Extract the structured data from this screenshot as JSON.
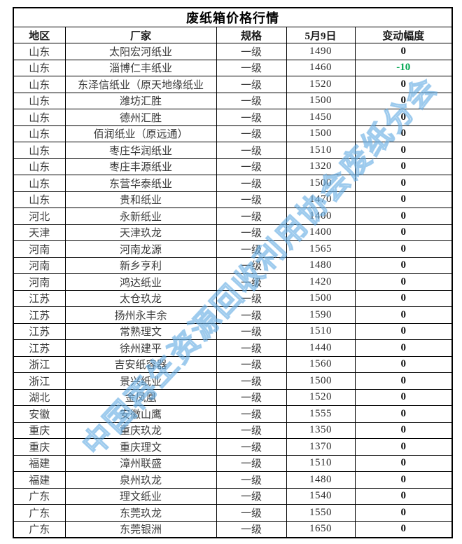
{
  "accent_colors": {
    "negative_change": "#00a651",
    "watermark_blue": "#87c4eb",
    "border": "#000000"
  },
  "watermark": {
    "text": "中国再生资源回收利用协会废纸分会"
  },
  "chart_data": {
    "type": "table",
    "title": "废纸箱价格行情",
    "columns": [
      "地区",
      "厂家",
      "规格",
      "5月9日",
      "变动幅度"
    ],
    "rows": [
      {
        "region": "山东",
        "factory": "太阳宏河纸业",
        "grade": "一级",
        "price": "1490",
        "change": "0"
      },
      {
        "region": "山东",
        "factory": "淄博仁丰纸业",
        "grade": "一级",
        "price": "1460",
        "change": "-10"
      },
      {
        "region": "山东",
        "factory": "东泽信纸业（原天地缘纸业",
        "grade": "一级",
        "price": "1520",
        "change": "0"
      },
      {
        "region": "山东",
        "factory": "潍坊汇胜",
        "grade": "一级",
        "price": "1500",
        "change": "0"
      },
      {
        "region": "山东",
        "factory": "德州汇胜",
        "grade": "一级",
        "price": "1450",
        "change": "0"
      },
      {
        "region": "山东",
        "factory": "佰润纸业（原远通）",
        "grade": "一级",
        "price": "1500",
        "change": "0"
      },
      {
        "region": "山东",
        "factory": "枣庄华润纸业",
        "grade": "一级",
        "price": "1510",
        "change": "0"
      },
      {
        "region": "山东",
        "factory": "枣庄丰源纸业",
        "grade": "一级",
        "price": "1320",
        "change": "0"
      },
      {
        "region": "山东",
        "factory": "东营华泰纸业",
        "grade": "一级",
        "price": "1500",
        "change": "0"
      },
      {
        "region": "山东",
        "factory": "贵和纸业",
        "grade": "一级",
        "price": "1470",
        "change": "0"
      },
      {
        "region": "河北",
        "factory": "永新纸业",
        "grade": "一级",
        "price": "1400",
        "change": "0"
      },
      {
        "region": "天津",
        "factory": "天津玖龙",
        "grade": "一级",
        "price": "1400",
        "change": "0"
      },
      {
        "region": "河南",
        "factory": "河南龙源",
        "grade": "一级",
        "price": "1565",
        "change": "0"
      },
      {
        "region": "河南",
        "factory": "新乡亨利",
        "grade": "一级",
        "price": "1480",
        "change": "0"
      },
      {
        "region": "河南",
        "factory": "鸿达纸业",
        "grade": "一级",
        "price": "1420",
        "change": "0"
      },
      {
        "region": "江苏",
        "factory": "太仓玖龙",
        "grade": "一级",
        "price": "1500",
        "change": "0"
      },
      {
        "region": "江苏",
        "factory": "扬州永丰余",
        "grade": "一级",
        "price": "1590",
        "change": "0"
      },
      {
        "region": "江苏",
        "factory": "常熟理文",
        "grade": "一级",
        "price": "1510",
        "change": "0"
      },
      {
        "region": "江苏",
        "factory": "徐州建平",
        "grade": "一级",
        "price": "1440",
        "change": "0"
      },
      {
        "region": "浙江",
        "factory": "吉安纸容器",
        "grade": "一级",
        "price": "1560",
        "change": "0"
      },
      {
        "region": "浙江",
        "factory": "景兴纸业",
        "grade": "一级",
        "price": "1500",
        "change": "0"
      },
      {
        "region": "湖北",
        "factory": "金凤凰",
        "grade": "一级",
        "price": "1520",
        "change": "0"
      },
      {
        "region": "安徽",
        "factory": "安徽山鹰",
        "grade": "一级",
        "price": "1555",
        "change": "0"
      },
      {
        "region": "重庆",
        "factory": "重庆玖龙",
        "grade": "一级",
        "price": "1350",
        "change": "0"
      },
      {
        "region": "重庆",
        "factory": "重庆理文",
        "grade": "一级",
        "price": "1370",
        "change": "0"
      },
      {
        "region": "福建",
        "factory": "漳州联盛",
        "grade": "一级",
        "price": "1510",
        "change": "0"
      },
      {
        "region": "福建",
        "factory": "泉州玖龙",
        "grade": "一级",
        "price": "1480",
        "change": "0"
      },
      {
        "region": "广东",
        "factory": "理文纸业",
        "grade": "一级",
        "price": "1540",
        "change": "0"
      },
      {
        "region": "广东",
        "factory": "东莞玖龙",
        "grade": "一级",
        "price": "1550",
        "change": "0"
      },
      {
        "region": "广东",
        "factory": "东莞银洲",
        "grade": "一级",
        "price": "1650",
        "change": "0"
      }
    ]
  }
}
